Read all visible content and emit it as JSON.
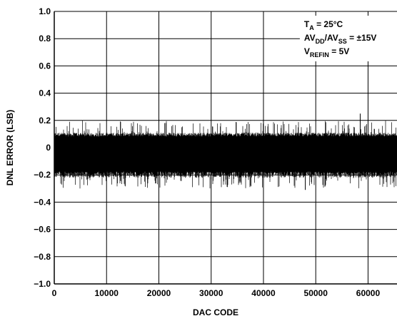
{
  "chart_data": {
    "type": "line",
    "title": "",
    "xlabel": "DAC CODE",
    "ylabel": "DNL ERROR (LSB)",
    "xlim": [
      0,
      65535
    ],
    "ylim": [
      -1.0,
      1.0
    ],
    "grid": true,
    "x_ticks": [
      "0",
      "10000",
      "20000",
      "30000",
      "40000",
      "50000",
      "60000"
    ],
    "y_ticks": [
      "1.0",
      "0.8",
      "0.6",
      "0.4",
      "0.2",
      "0",
      "−0.2",
      "−0.4",
      "−0.6",
      "−0.8",
      "−1.0"
    ],
    "annotation": {
      "line1": {
        "base": "T",
        "sub": "A",
        "rest": " = 25°C"
      },
      "line2": {
        "p1": "AV",
        "s1": "DD",
        "p2": "/AV",
        "s2": "SS",
        "rest": " = ±15V"
      },
      "line3": {
        "base": "V",
        "sub": "REFIN",
        "rest": " = 5V"
      }
    },
    "series": [
      {
        "band_upper": 0.11,
        "band_lower": -0.22,
        "spike_upper": 0.2,
        "spike_lower": -0.3,
        "peak_positive": {
          "x": 58500,
          "y": 0.25
        },
        "peak_negative": {
          "x": 48000,
          "y": -0.31
        }
      }
    ],
    "color": "#000000"
  }
}
